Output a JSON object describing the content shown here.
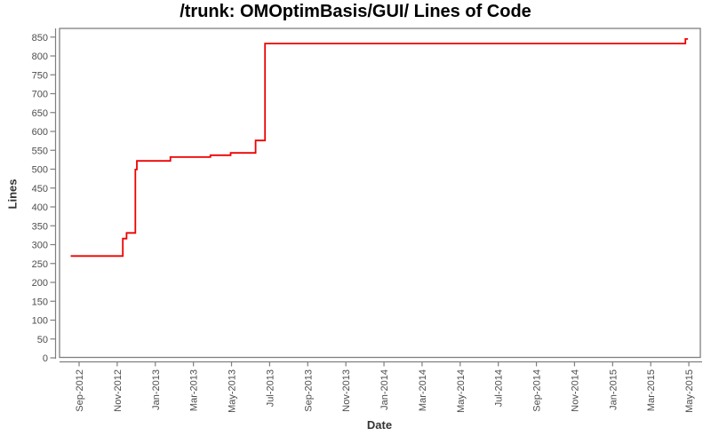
{
  "title": "/trunk: OMOptimBasis/GUI/ Lines of Code",
  "colors": {
    "background": "#ffffff",
    "title_text": "#000000",
    "axis_label_text": "#333333",
    "tick_text": "#4d4d4d",
    "axis_line": "#7f7f7f",
    "plot_border": "#7f7f7f",
    "series": "#ee0000"
  },
  "chart_data": {
    "type": "line",
    "render_style": "step-after",
    "title": "/trunk: OMOptimBasis/GUI/ Lines of Code",
    "xlabel": "Date",
    "ylabel": "Lines",
    "grid": false,
    "legend": "none",
    "ylim": [
      0,
      872
    ],
    "xlim": [
      "2012-08-01",
      "2015-06-15"
    ],
    "y_ticks": [
      850,
      800,
      750,
      700,
      650,
      600,
      550,
      500,
      450,
      400,
      350,
      300,
      250,
      200,
      150,
      100,
      50,
      0
    ],
    "x_ticks": [
      "Sep-2012",
      "Nov-2012",
      "Jan-2013",
      "Mar-2013",
      "May-2013",
      "Jul-2013",
      "Sep-2013",
      "Nov-2013",
      "Jan-2014",
      "Mar-2014",
      "May-2014",
      "Jul-2014",
      "Sep-2014",
      "Nov-2014",
      "Jan-2015",
      "Mar-2015",
      "May-2015"
    ],
    "series": [
      {
        "name": "Lines of Code",
        "color": "#ee0000",
        "points": [
          [
            "2012-08-18",
            270
          ],
          [
            "2012-11-10",
            316
          ],
          [
            "2012-11-16",
            331
          ],
          [
            "2012-11-30",
            499
          ],
          [
            "2012-12-02",
            522
          ],
          [
            "2013-01-25",
            532
          ],
          [
            "2013-03-28",
            537
          ],
          [
            "2013-04-30",
            543
          ],
          [
            "2013-06-09",
            576
          ],
          [
            "2013-06-24",
            833
          ],
          [
            "2015-04-26",
            845
          ],
          [
            "2015-04-30",
            845
          ]
        ]
      }
    ]
  }
}
